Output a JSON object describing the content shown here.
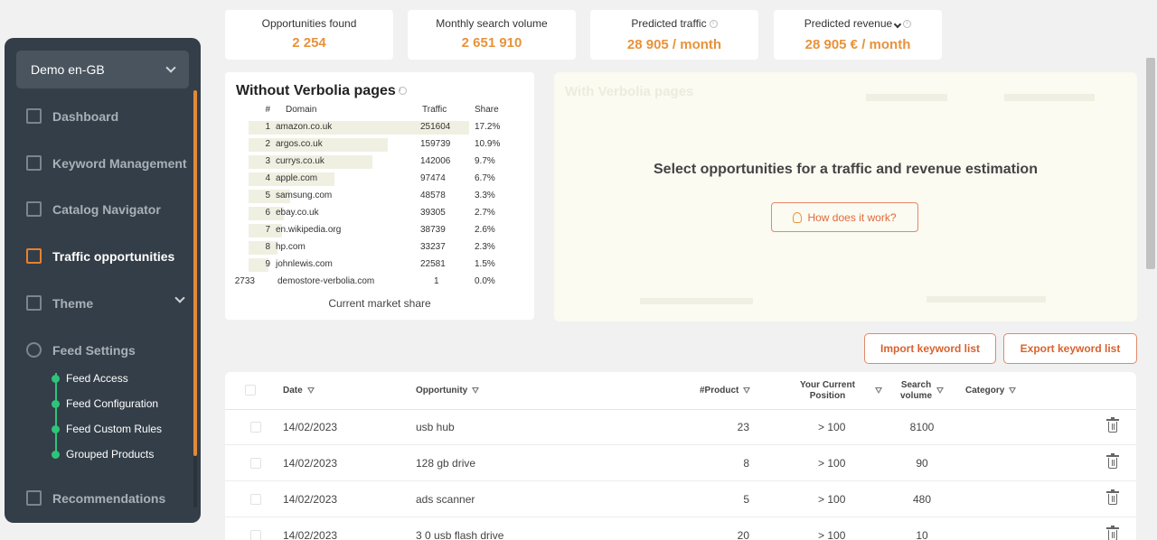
{
  "sidebar": {
    "store": "Demo en-GB",
    "items": [
      {
        "label": "Dashboard",
        "icon": "dashboard-icon"
      },
      {
        "label": "Keyword Management",
        "icon": "lock-icon"
      },
      {
        "label": "Catalog Navigator",
        "icon": "catalog-icon"
      },
      {
        "label": "Traffic opportunities",
        "icon": "star-icon"
      },
      {
        "label": "Theme",
        "icon": "theme-icon"
      },
      {
        "label": "Feed Settings",
        "icon": "feed-icon"
      },
      {
        "label": "Recommendations",
        "icon": "recommendations-icon"
      }
    ],
    "sub_items": [
      "Feed Access",
      "Feed Configuration",
      "Feed Custom Rules",
      "Grouped Products"
    ]
  },
  "stats": {
    "opportunities": {
      "label": "Opportunities found",
      "value": "2 254"
    },
    "search_volume": {
      "label": "Monthly search volume",
      "value": "2 651 910"
    },
    "traffic": {
      "label": "Predicted traffic",
      "value": "28 905 / month"
    },
    "revenue": {
      "label": "Predicted revenue",
      "value": "28 905 € / month"
    }
  },
  "without_panel": {
    "title": "Without Verbolia pages",
    "headers": {
      "rank": "#",
      "domain": "Domain",
      "traffic": "Traffic",
      "share": "Share"
    },
    "rows": [
      {
        "rank": "1",
        "domain": "amazon.co.uk",
        "traffic": "251604",
        "share": "17.2%",
        "bar_fraction": 1.0
      },
      {
        "rank": "2",
        "domain": "argos.co.uk",
        "traffic": "159739",
        "share": "10.9%",
        "bar_fraction": 0.63
      },
      {
        "rank": "3",
        "domain": "currys.co.uk",
        "traffic": "142006",
        "share": "9.7%",
        "bar_fraction": 0.56
      },
      {
        "rank": "4",
        "domain": "apple.com",
        "traffic": "97474",
        "share": "6.7%",
        "bar_fraction": 0.39
      },
      {
        "rank": "5",
        "domain": "samsung.com",
        "traffic": "48578",
        "share": "3.3%",
        "bar_fraction": 0.19
      },
      {
        "rank": "6",
        "domain": "ebay.co.uk",
        "traffic": "39305",
        "share": "2.7%",
        "bar_fraction": 0.16
      },
      {
        "rank": "7",
        "domain": "en.wikipedia.org",
        "traffic": "38739",
        "share": "2.6%",
        "bar_fraction": 0.15
      },
      {
        "rank": "8",
        "domain": "hp.com",
        "traffic": "33237",
        "share": "2.3%",
        "bar_fraction": 0.13
      },
      {
        "rank": "9",
        "domain": "johnlewis.com",
        "traffic": "22581",
        "share": "1.5%",
        "bar_fraction": 0.09
      },
      {
        "rank": "2733",
        "domain": "demostore-verbolia.com",
        "traffic": "1",
        "share": "0.0%",
        "bar_fraction": 0.0
      }
    ],
    "footer": "Current market share"
  },
  "with_panel": {
    "title": "With Verbolia pages",
    "message": "Select opportunities for a traffic and revenue estimation",
    "button": "How does it work?"
  },
  "actions": {
    "import": "Import keyword list",
    "export": "Export keyword list"
  },
  "table": {
    "headers": {
      "date": "Date",
      "opportunity": "Opportunity",
      "product": "#Product",
      "position_1": "Your Current",
      "position_2": "Position",
      "volume_1": "Search",
      "volume_2": "volume",
      "category": "Category"
    },
    "rows": [
      {
        "date": "14/02/2023",
        "opportunity": "usb hub",
        "product": "23",
        "position": "> 100",
        "volume": "8100"
      },
      {
        "date": "14/02/2023",
        "opportunity": "128 gb drive",
        "product": "8",
        "position": "> 100",
        "volume": "90"
      },
      {
        "date": "14/02/2023",
        "opportunity": "ads scanner",
        "product": "5",
        "position": "> 100",
        "volume": "480"
      },
      {
        "date": "14/02/2023",
        "opportunity": "3 0 usb flash drive",
        "product": "20",
        "position": "> 100",
        "volume": "10"
      }
    ]
  },
  "colors": {
    "accent": "#e8923a",
    "sidebar": "#343e48",
    "green": "#2ec47a"
  }
}
